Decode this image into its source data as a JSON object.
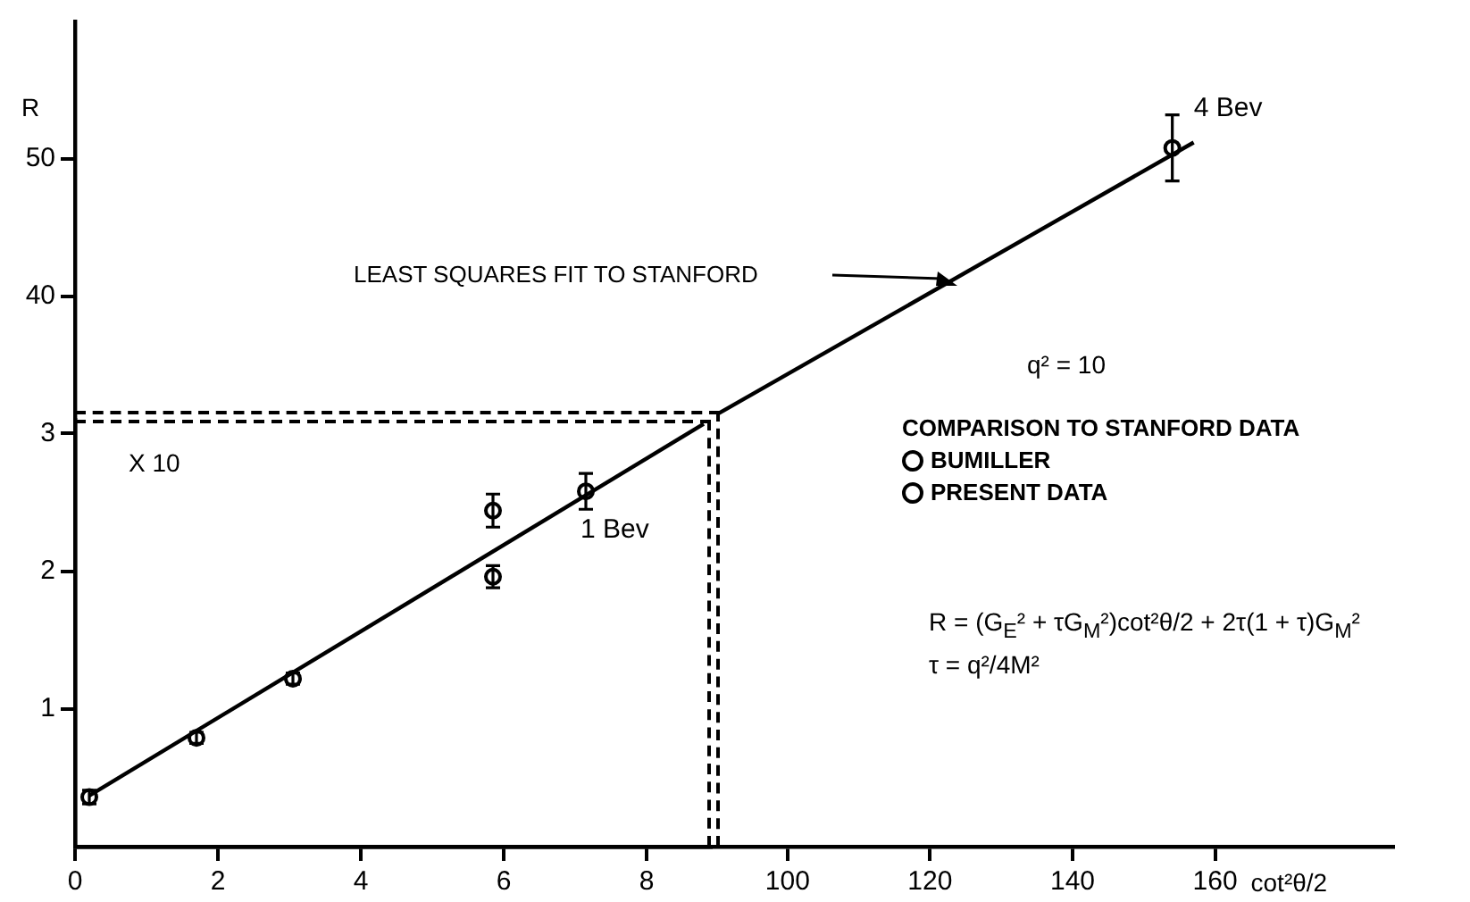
{
  "chart_data": [
    {
      "type": "scatter",
      "xlabel": "cot²θ/2",
      "ylabel": "R",
      "xlim": [
        0,
        185
      ],
      "ylim": [
        0,
        60
      ],
      "xticks": [
        100,
        120,
        140,
        160
      ],
      "yticks": [
        40,
        50
      ],
      "grid": false,
      "legend": false,
      "series": [
        {
          "type": "line",
          "color": "#000000",
          "x": [
            90,
            157
          ],
          "values": [
            31.4,
            51.2
          ]
        },
        {
          "color": "#000000",
          "x": [
            154
          ],
          "values": [
            50.8
          ],
          "errors": [
            2.4
          ],
          "marker": "circle"
        }
      ],
      "annotations": [
        "q² = 10",
        "R = (G$_{E}$² + τG$_{M}$²)cot²θ/2 + 2τ(1 + τ)G$_{M}$²",
        "τ = q²/4M²",
        "LEAST SQUARES FIT TO STANFORD",
        {
          "text": "4 Bev",
          "x": 154,
          "y": 50.8
        }
      ]
    },
    {
      "type": "scatter",
      "xlim": [
        0,
        8.9
      ],
      "ylim": [
        0,
        3.1
      ],
      "xticks": [
        0,
        2,
        4,
        6,
        8
      ],
      "yticks": [
        1,
        2,
        3
      ],
      "grid": false,
      "legend": "right",
      "legend_title": "COMPARISON TO STANFORD DATA",
      "series": [
        {
          "type": "line",
          "color": "#000000",
          "x": [
            0.2,
            8.8
          ],
          "values": [
            0.37,
            3.07
          ]
        },
        {
          "name": "BUMILLER",
          "color": "#000000",
          "x": [
            0.2,
            1.7,
            3.05,
            5.85,
            5.85
          ],
          "values": [
            0.36,
            0.79,
            1.22,
            1.96,
            2.44
          ],
          "errors": [
            0.05,
            0.04,
            0.04,
            0.08,
            0.12
          ],
          "marker": "circle"
        },
        {
          "name": "PRESENT DATA",
          "color": "#000000",
          "x": [
            7.15
          ],
          "values": [
            2.58
          ],
          "errors": [
            0.13
          ],
          "marker": "circle"
        }
      ],
      "annotations": [
        "X 10",
        {
          "text": "1 Bev",
          "x": 7.15,
          "y": 2.58
        }
      ]
    }
  ]
}
